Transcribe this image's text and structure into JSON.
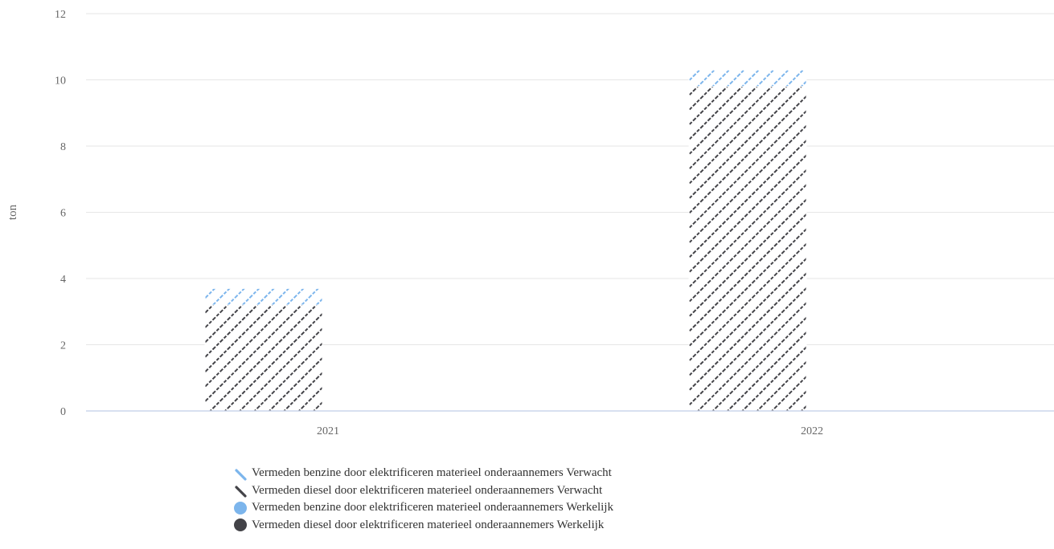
{
  "chart_data": {
    "type": "bar",
    "stacked": true,
    "categories": [
      "2021",
      "2022"
    ],
    "series": [
      {
        "name": "Vermeden benzine door elektrificeren materieel onderaannemers Verwacht",
        "values": [
          0.5,
          0.5
        ],
        "color": "#7cb5ec",
        "pattern": "hatched",
        "stack": "Verwacht"
      },
      {
        "name": "Vermeden diesel door elektrificeren materieel onderaannemers Verwacht",
        "values": [
          3.2,
          9.8
        ],
        "color": "#434348",
        "pattern": "hatched",
        "stack": "Verwacht"
      },
      {
        "name": "Vermeden benzine door elektrificeren materieel onderaannemers Werkelijk",
        "values": [
          0,
          0
        ],
        "color": "#7cb5ec",
        "pattern": "solid",
        "stack": "Werkelijk"
      },
      {
        "name": "Vermeden diesel door elektrificeren materieel onderaannemers Werkelijk",
        "values": [
          0,
          0
        ],
        "color": "#434348",
        "pattern": "solid",
        "stack": "Werkelijk"
      }
    ],
    "ylabel": "ton",
    "ylim": [
      0,
      12
    ],
    "yticks": [
      "0",
      "2",
      "4",
      "6",
      "8",
      "10",
      "12"
    ],
    "grid": true,
    "legend_position": "bottom"
  }
}
